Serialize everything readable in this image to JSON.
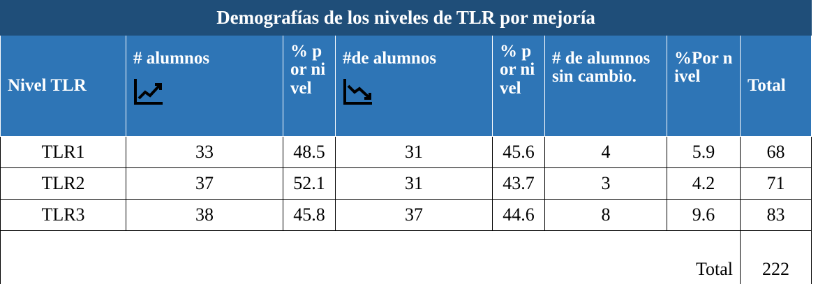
{
  "title": "Demografías de los niveles de TLR por mejoría",
  "table": {
    "header": [
      "Nivel TLR",
      "# alumnos",
      "% por nivel",
      "#de alumnos",
      "% por nivel",
      "# de alumnos sin cambio.",
      "%Por nivel",
      "Total"
    ],
    "rows": [
      [
        "TLR1",
        33,
        48.5,
        31,
        45.6,
        4,
        5.9,
        68
      ],
      [
        "TLR2",
        37,
        52.1,
        31,
        43.7,
        3,
        4.2,
        71
      ],
      [
        "TLR3",
        38,
        45.8,
        37,
        44.6,
        8,
        9.6,
        83
      ]
    ],
    "total": {
      "label": "Total",
      "value": 222
    }
  }
}
